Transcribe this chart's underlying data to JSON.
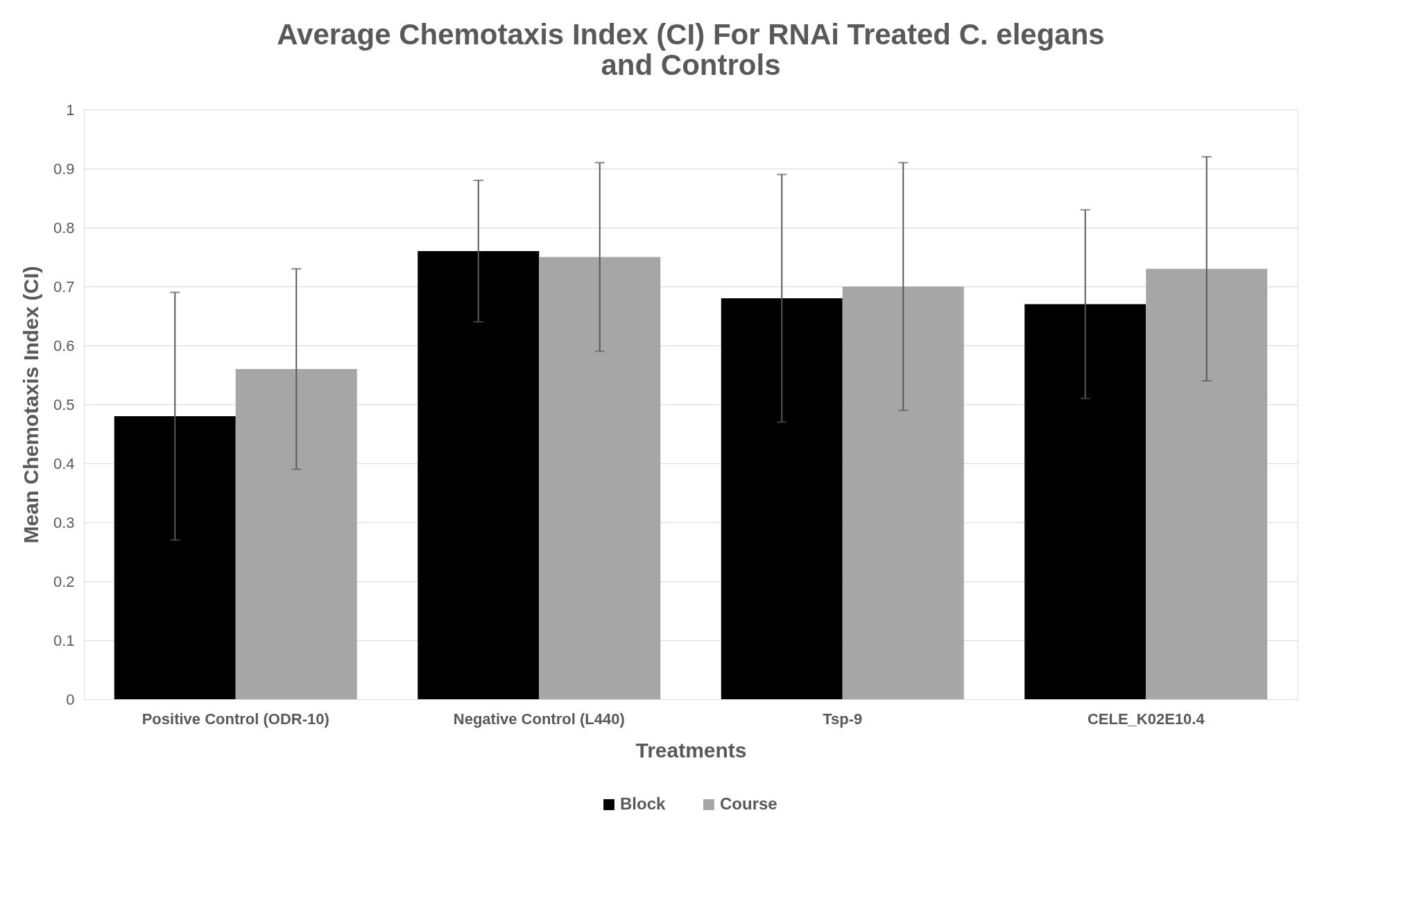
{
  "chart_data": {
    "type": "bar",
    "title": "Average Chemotaxis Index (CI) For RNAi Treated C. elegans\nand Controls",
    "xlabel": "Treatments",
    "ylabel": "Mean Chemotaxis Index (CI)",
    "categories": [
      "Positive Control (ODR-10)",
      "Negative Control (L440)",
      "Tsp-9",
      "CELE_K02E10.4"
    ],
    "series": [
      {
        "name": "Block",
        "color": "#000000",
        "values": [
          0.48,
          0.76,
          0.68,
          0.67
        ],
        "errors": [
          0.21,
          0.12,
          0.21,
          0.16
        ]
      },
      {
        "name": "Course",
        "color": "#a6a6a6",
        "values": [
          0.56,
          0.75,
          0.7,
          0.73
        ],
        "errors": [
          0.17,
          0.16,
          0.21,
          0.19
        ]
      }
    ],
    "ylim": [
      0,
      1
    ],
    "yticks": [
      0,
      0.1,
      0.2,
      0.3,
      0.4,
      0.5,
      0.6,
      0.7,
      0.8,
      0.9,
      1
    ],
    "grid": "y",
    "legend": "bottom"
  }
}
